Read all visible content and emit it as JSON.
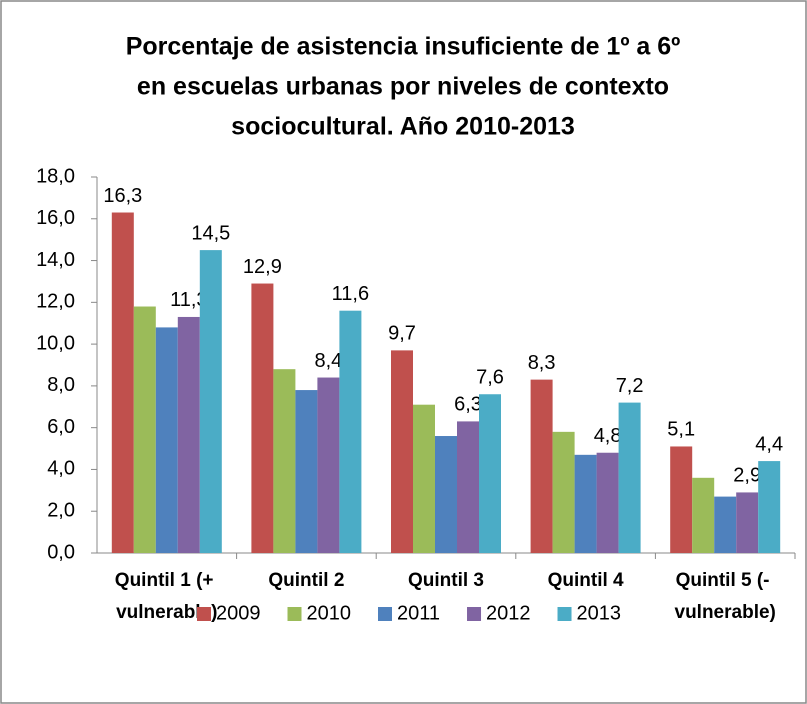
{
  "chart_data": {
    "type": "bar",
    "title": [
      "Porcentaje de asistencia insuficiente de 1º a 6º",
      "en escuelas urbanas  por niveles de contexto",
      "sociocultural. Año 2010-2013"
    ],
    "categories": [
      "Quintil 1 (+ vulnerable)",
      "Quintil 2",
      "Quintil 3",
      "Quintil 4",
      "Quintil 5 (- vulnerable)"
    ],
    "series": [
      {
        "name": "2009",
        "color": "#c0504d",
        "values": [
          16.3,
          12.9,
          9.7,
          8.3,
          5.1
        ],
        "value_labels": [
          "16,3",
          "12,9",
          "9,7",
          "8,3",
          "5,1"
        ]
      },
      {
        "name": "2010",
        "color": "#9bbb59",
        "values": [
          11.8,
          8.8,
          7.1,
          5.8,
          3.6
        ]
      },
      {
        "name": "2011",
        "color": "#4f81bd",
        "values": [
          10.8,
          7.8,
          5.6,
          4.7,
          2.7
        ]
      },
      {
        "name": "2012",
        "color": "#8064a2",
        "values": [
          11.3,
          8.4,
          6.3,
          4.8,
          2.9
        ],
        "value_labels": [
          "11,3",
          "8,4",
          "6,3",
          "4,8",
          "2,9"
        ]
      },
      {
        "name": "2013",
        "color": "#4bacc6",
        "values": [
          14.5,
          11.6,
          7.6,
          7.2,
          4.4
        ],
        "value_labels": [
          "14,5",
          "11,6",
          "7,6",
          "7,2",
          "4,4"
        ]
      }
    ],
    "ylim": [
      0,
      18
    ],
    "yticks": [
      {
        "value": 0,
        "label": "0,0"
      },
      {
        "value": 2,
        "label": "2,0"
      },
      {
        "value": 4,
        "label": "4,0"
      },
      {
        "value": 6,
        "label": "6,0"
      },
      {
        "value": 8,
        "label": "8,0"
      },
      {
        "value": 10,
        "label": "10,0"
      },
      {
        "value": 12,
        "label": "12,0"
      },
      {
        "value": 14,
        "label": "14,0"
      },
      {
        "value": 16,
        "label": "16,0"
      },
      {
        "value": 18,
        "label": "18,0"
      }
    ],
    "grid": false,
    "legend": "bottom"
  }
}
